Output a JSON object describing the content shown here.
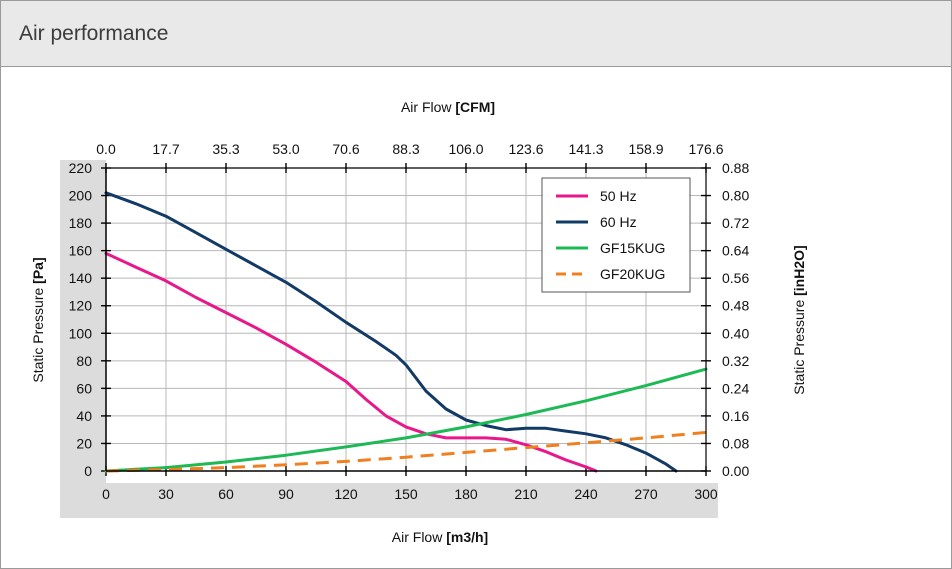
{
  "panel": {
    "title": "Air performance"
  },
  "chart_data": {
    "type": "line",
    "title": "",
    "xlabel_plain": "Air Flow",
    "xlabel_bold": "[m3/h]",
    "x2label_plain": "Air Flow",
    "x2label_bold": "[CFM]",
    "ylabel_plain": "Static Pressure",
    "ylabel_bold": "[Pa]",
    "y2label_plain": "Static Pressure",
    "y2label_bold": "[inH2O]",
    "xlim": [
      0,
      300
    ],
    "ylim": [
      0,
      220
    ],
    "x_ticks": [
      "0",
      "30",
      "60",
      "90",
      "120",
      "150",
      "180",
      "210",
      "240",
      "270",
      "300"
    ],
    "x2_ticks": [
      "0.0",
      "17.7",
      "35.3",
      "53.0",
      "70.6",
      "88.3",
      "106.0",
      "123.6",
      "141.3",
      "158.9",
      "176.6"
    ],
    "y_ticks": [
      "0",
      "20",
      "40",
      "60",
      "80",
      "100",
      "120",
      "140",
      "160",
      "180",
      "200",
      "220"
    ],
    "y2_ticks": [
      "0.00",
      "0.08",
      "0.16",
      "0.24",
      "0.32",
      "0.40",
      "0.48",
      "0.56",
      "0.64",
      "0.72",
      "0.80",
      "0.88"
    ],
    "grid": true,
    "legend_position": "top-right",
    "series": [
      {
        "name": "50 Hz",
        "color": "#e8178a",
        "dash": false,
        "x": [
          0,
          15,
          30,
          45,
          60,
          75,
          90,
          105,
          120,
          130,
          140,
          150,
          160,
          170,
          180,
          190,
          200,
          210,
          220,
          230,
          240,
          245
        ],
        "y": [
          158,
          148,
          138,
          126,
          115,
          104,
          92,
          79,
          65,
          52,
          40,
          32,
          27,
          24,
          24,
          24,
          23,
          19,
          14,
          8,
          3,
          0
        ]
      },
      {
        "name": "60 Hz",
        "color": "#123a66",
        "dash": false,
        "x": [
          0,
          15,
          30,
          45,
          60,
          75,
          90,
          105,
          120,
          135,
          145,
          150,
          160,
          170,
          180,
          190,
          200,
          210,
          220,
          230,
          240,
          250,
          260,
          270,
          280,
          285
        ],
        "y": [
          202,
          194,
          185,
          173,
          161,
          149,
          137,
          123,
          108,
          94,
          84,
          77,
          58,
          45,
          37,
          33,
          30,
          31,
          31,
          29,
          27,
          24,
          19,
          13,
          5,
          0
        ]
      },
      {
        "name": "GF15KUG",
        "color": "#1db954",
        "dash": false,
        "x": [
          0,
          30,
          60,
          90,
          120,
          150,
          180,
          210,
          240,
          270,
          300
        ],
        "y": [
          0,
          2.5,
          6.5,
          11.5,
          17.5,
          24,
          32,
          41,
          51,
          62,
          74
        ]
      },
      {
        "name": "GF20KUG",
        "color": "#f07f1f",
        "dash": true,
        "x": [
          0,
          30,
          60,
          90,
          120,
          150,
          180,
          210,
          240,
          270,
          300
        ],
        "y": [
          0,
          1,
          2.5,
          4.5,
          7,
          10,
          13.5,
          17,
          20.5,
          24,
          28
        ]
      }
    ]
  }
}
